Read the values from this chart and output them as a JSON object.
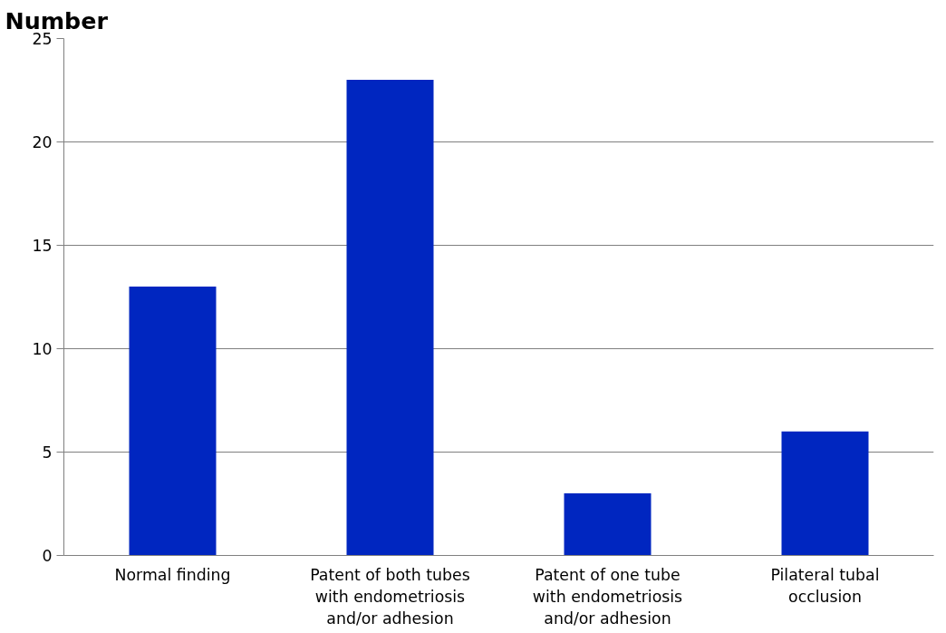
{
  "chart_data": {
    "type": "bar",
    "ylabel": "Number",
    "categories": [
      "Normal finding",
      "Patent of both tubes with endometriosis and/or adhesion",
      "Patent of one tube with endometriosis and/or adhesion",
      "Pilateral tubal occlusion"
    ],
    "values": [
      13,
      23,
      3,
      6
    ],
    "color": "#0026c0",
    "ylim": [
      0,
      25
    ],
    "yticks": [
      0,
      5,
      10,
      15,
      20,
      25
    ],
    "grid": "y"
  }
}
